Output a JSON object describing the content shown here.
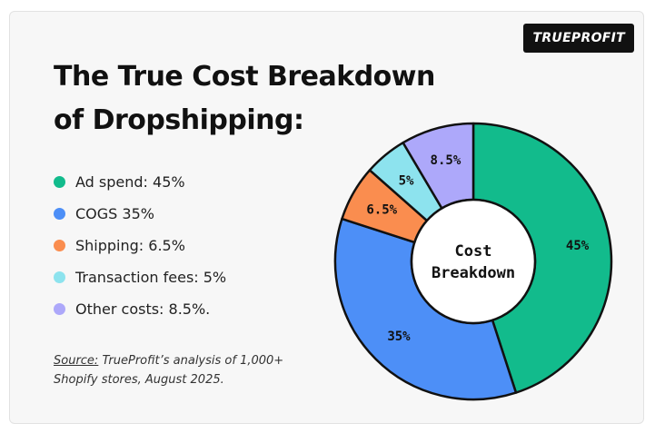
{
  "logo": {
    "text": "TRUEPROFIT"
  },
  "title": {
    "line1": "The True Cost Breakdown",
    "line2": "of Dropshipping:"
  },
  "legend": [
    {
      "label": "Ad spend: 45%",
      "color": "#12bb8c"
    },
    {
      "label": "COGS 35%",
      "color": "#4d8ff7"
    },
    {
      "label": "Shipping: 6.5%",
      "color": "#fa8d4f"
    },
    {
      "label": "Transaction fees: 5%",
      "color": "#8de3ee"
    },
    {
      "label": "Other costs: 8.5%.",
      "color": "#ada8fa"
    }
  ],
  "source": {
    "label": "Source:",
    "line1": " TrueProfit’s analysis of 1,000+",
    "line2": "Shopify stores, August 2025."
  },
  "chart_data": {
    "type": "pie",
    "center_label": [
      "Cost",
      "Breakdown"
    ],
    "slices": [
      {
        "label": "45%",
        "value": 45,
        "color": "#12bb8c"
      },
      {
        "label": "35%",
        "value": 35,
        "color": "#4d8ff7"
      },
      {
        "label": "6.5%",
        "value": 6.5,
        "color": "#fa8d4f"
      },
      {
        "label": "5%",
        "value": 5,
        "color": "#8de3ee"
      },
      {
        "label": "8.5%",
        "value": 8.5,
        "color": "#ada8fa"
      }
    ]
  }
}
